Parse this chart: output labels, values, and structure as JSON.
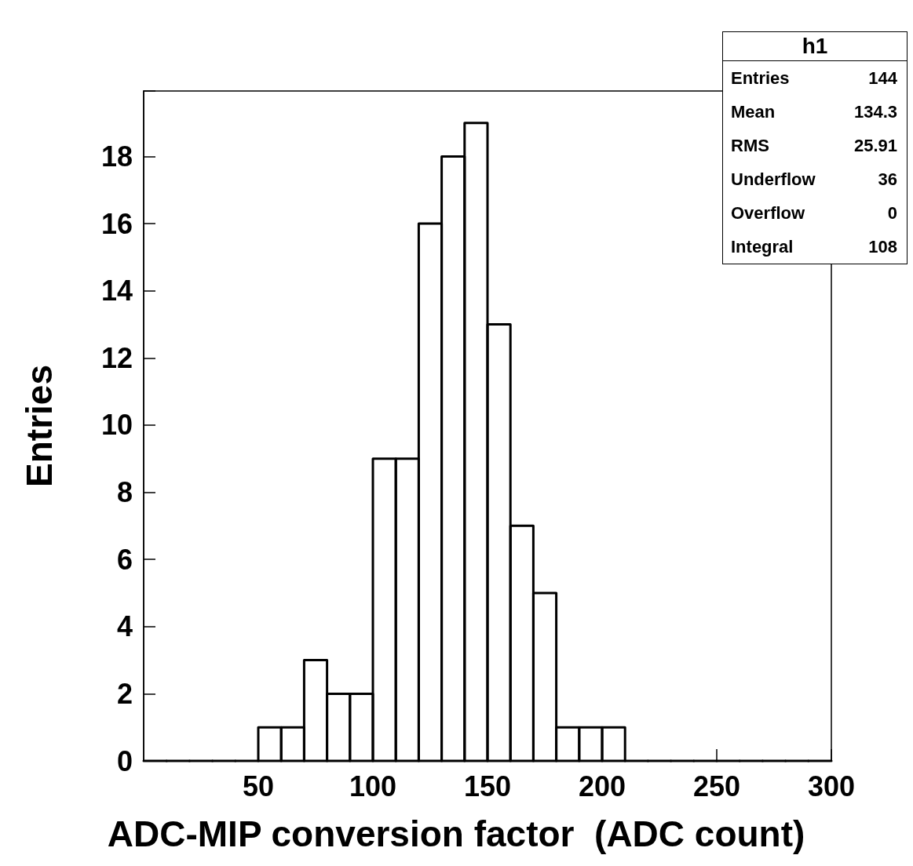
{
  "chart_data": {
    "type": "histogram",
    "xlabel": "ADC-MIP conversion factor  (ADC count)",
    "ylabel": "Entries",
    "bins": [
      0,
      10,
      20,
      30,
      40,
      50,
      60,
      70,
      80,
      90,
      100,
      110,
      120,
      130,
      140,
      150,
      160,
      170,
      180,
      190,
      200,
      210,
      220,
      230,
      240,
      250,
      260,
      270,
      280,
      290,
      300
    ],
    "values": [
      0,
      0,
      0,
      0,
      0,
      1,
      1,
      3,
      2,
      2,
      9,
      9,
      16,
      18,
      19,
      13,
      7,
      5,
      1,
      1,
      1,
      0,
      0,
      0,
      0,
      0,
      0,
      0,
      0,
      0
    ],
    "color": "#000000",
    "xlim": [
      0,
      300
    ],
    "xticks": [
      50,
      100,
      150,
      200,
      250,
      300
    ],
    "ylim": [
      0,
      19.95
    ],
    "yticks": [
      0,
      2,
      4,
      6,
      8,
      10,
      12,
      14,
      16,
      18
    ],
    "grid": false,
    "annotations": [
      "h1",
      "Entries",
      "144",
      "Mean",
      "134.3",
      "RMS",
      "25.91",
      "Underflow",
      "36",
      "Overflow",
      "0",
      "Integral",
      "108"
    ]
  }
}
